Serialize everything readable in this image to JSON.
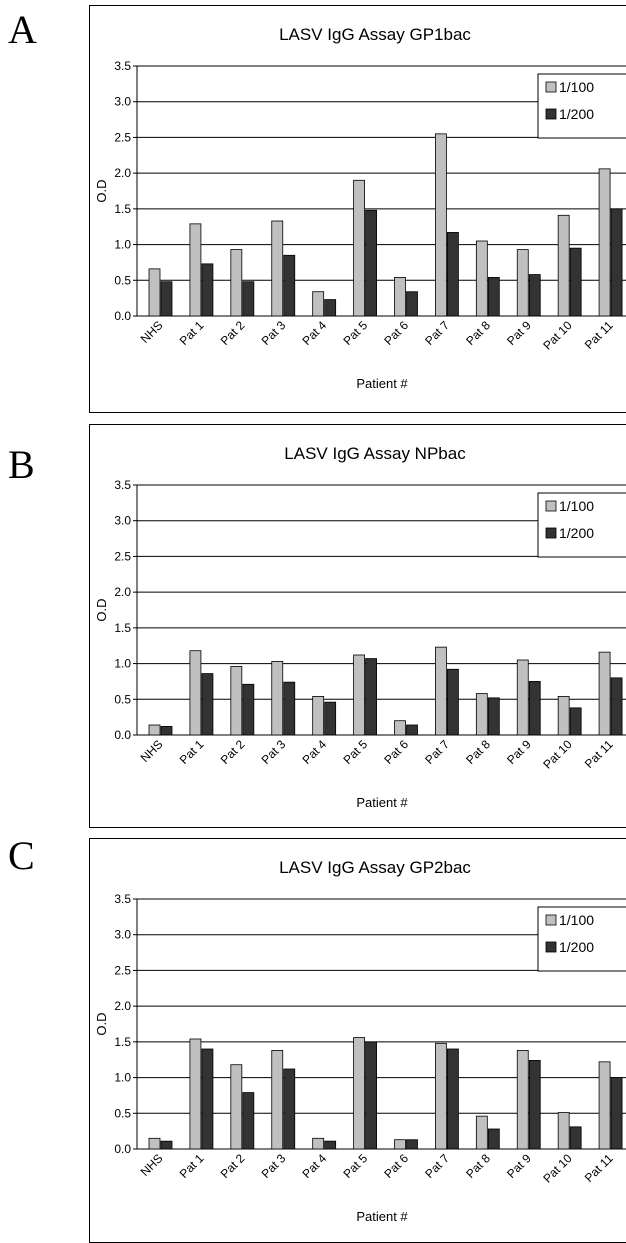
{
  "panels": [
    {
      "letter": "A"
    },
    {
      "letter": "B"
    },
    {
      "letter": "C"
    }
  ],
  "chart_data": [
    {
      "type": "bar",
      "title": "LASV IgG Assay GP1bac",
      "xlabel": "Patient #",
      "ylabel": "O.D",
      "ylim": [
        0,
        3.5
      ],
      "yticks": [
        "0.0",
        "0.5",
        "1.0",
        "1.5",
        "2.0",
        "2.5",
        "3.0",
        "3.5"
      ],
      "grid": true,
      "legend_position": "top-right",
      "categories": [
        "NHS",
        "Pat 1",
        "Pat 2",
        "Pat 3",
        "Pat 4",
        "Pat 5",
        "Pat 6",
        "Pat 7",
        "Pat 8",
        "Pat 9",
        "Pat 10",
        "Pat 11"
      ],
      "series": [
        {
          "name": "1/100",
          "color": "#c0c0c0",
          "values": [
            0.66,
            1.29,
            0.93,
            1.33,
            0.34,
            1.9,
            0.54,
            2.55,
            1.05,
            0.93,
            1.41,
            2.06
          ]
        },
        {
          "name": "1/200",
          "color": "#333333",
          "values": [
            0.48,
            0.73,
            0.48,
            0.85,
            0.23,
            1.48,
            0.34,
            1.17,
            0.54,
            0.58,
            0.95,
            1.5
          ]
        }
      ]
    },
    {
      "type": "bar",
      "title": "LASV IgG Assay NPbac",
      "xlabel": "Patient #",
      "ylabel": "O.D",
      "ylim": [
        0,
        3.5
      ],
      "yticks": [
        "0.0",
        "0.5",
        "1.0",
        "1.5",
        "2.0",
        "2.5",
        "3.0",
        "3.5"
      ],
      "grid": true,
      "legend_position": "top-right",
      "categories": [
        "NHS",
        "Pat 1",
        "Pat 2",
        "Pat 3",
        "Pat 4",
        "Pat 5",
        "Pat 6",
        "Pat 7",
        "Pat 8",
        "Pat 9",
        "Pat 10",
        "Pat 11"
      ],
      "series": [
        {
          "name": "1/100",
          "color": "#c0c0c0",
          "values": [
            0.14,
            1.18,
            0.96,
            1.03,
            0.54,
            1.12,
            0.2,
            1.23,
            0.58,
            1.05,
            0.54,
            1.16
          ]
        },
        {
          "name": "1/200",
          "color": "#333333",
          "values": [
            0.12,
            0.86,
            0.71,
            0.74,
            0.46,
            1.07,
            0.14,
            0.92,
            0.52,
            0.75,
            0.38,
            0.8
          ]
        }
      ]
    },
    {
      "type": "bar",
      "title": "LASV IgG Assay GP2bac",
      "xlabel": "Patient #",
      "ylabel": "O.D",
      "ylim": [
        0,
        3.5
      ],
      "yticks": [
        "0.0",
        "0.5",
        "1.0",
        "1.5",
        "2.0",
        "2.5",
        "3.0",
        "3.5"
      ],
      "grid": true,
      "legend_position": "top-right",
      "categories": [
        "NHS",
        "Pat 1",
        "Pat 2",
        "Pat 3",
        "Pat 4",
        "Pat 5",
        "Pat 6",
        "Pat 7",
        "Pat 8",
        "Pat 9",
        "Pat 10",
        "Pat 11"
      ],
      "series": [
        {
          "name": "1/100",
          "color": "#c0c0c0",
          "values": [
            0.15,
            1.54,
            1.18,
            1.38,
            0.15,
            1.56,
            0.13,
            1.48,
            0.46,
            1.38,
            0.51,
            1.22
          ]
        },
        {
          "name": "1/200",
          "color": "#333333",
          "values": [
            0.11,
            1.4,
            0.79,
            1.12,
            0.11,
            1.5,
            0.13,
            1.4,
            0.28,
            1.24,
            0.31,
            1.0
          ]
        }
      ]
    }
  ]
}
